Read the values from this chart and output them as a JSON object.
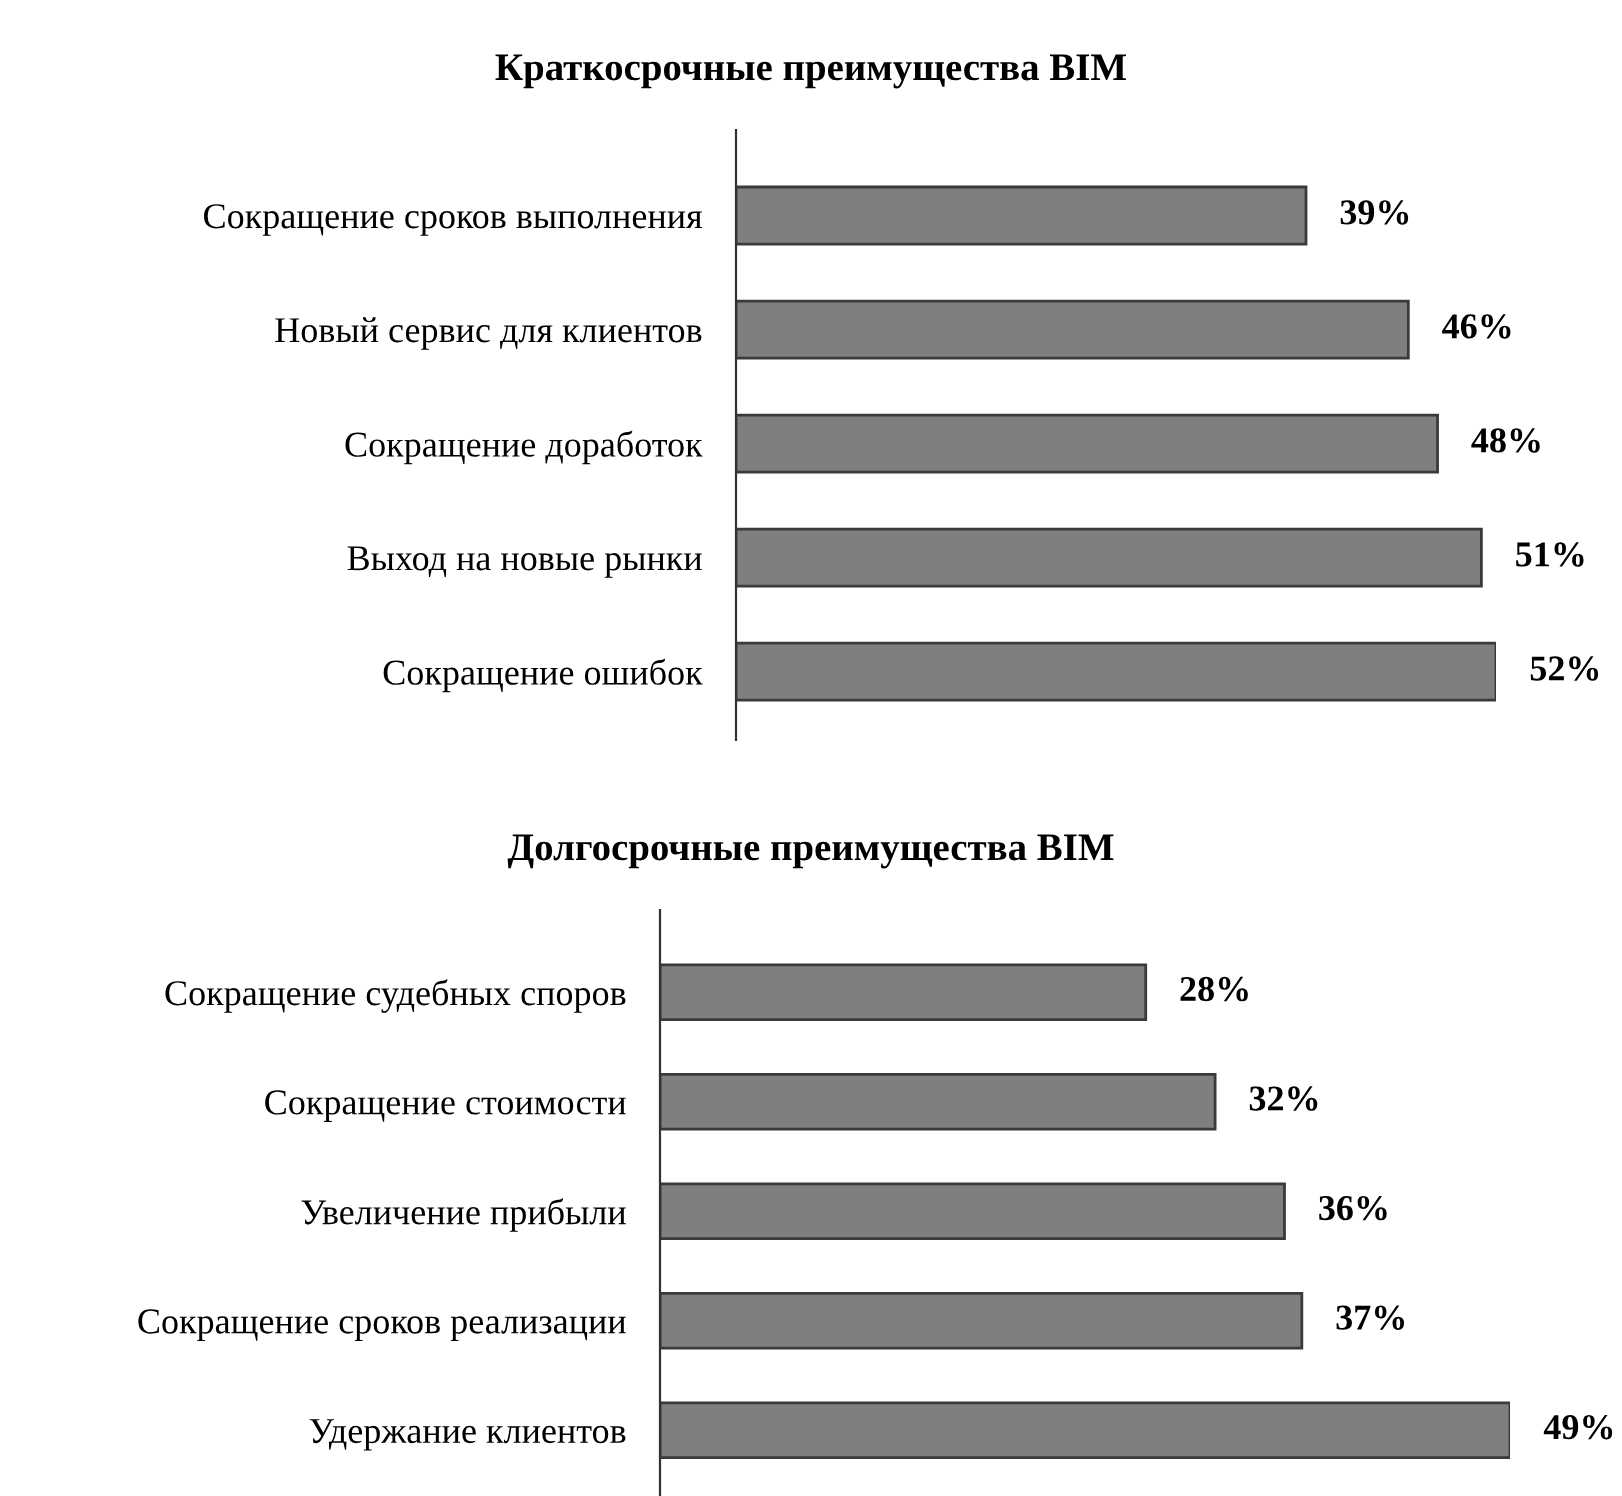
{
  "chart_data": [
    {
      "type": "bar",
      "orientation": "horizontal",
      "title": "Краткосрочные преимущества BIM",
      "categories": [
        "Сокращение сроков выполнения",
        "Новый сервис для клиентов",
        "Сокращение доработок",
        "Выход на новые рынки",
        "Сокращение ошибок"
      ],
      "values": [
        39,
        46,
        48,
        51,
        52
      ],
      "value_labels": [
        "39%",
        "46%",
        "48%",
        "51%",
        "52%"
      ],
      "color": "#7f7f7f",
      "tick_labels": "y",
      "grid": false,
      "legend": false
    },
    {
      "type": "bar",
      "orientation": "horizontal",
      "title": "Долгосрочные преимущества BIM",
      "categories": [
        "Сокращение судебных споров",
        "Сокращение стоимости",
        "Увеличение прибыли",
        "Сокращение сроков реализации",
        "Удержание клиентов"
      ],
      "values": [
        28,
        32,
        36,
        37,
        49
      ],
      "value_labels": [
        "28%",
        "32%",
        "36%",
        "37%",
        "49%"
      ],
      "color": "#7f7f7f",
      "tick_labels": "y",
      "grid": false,
      "legend": false
    }
  ]
}
